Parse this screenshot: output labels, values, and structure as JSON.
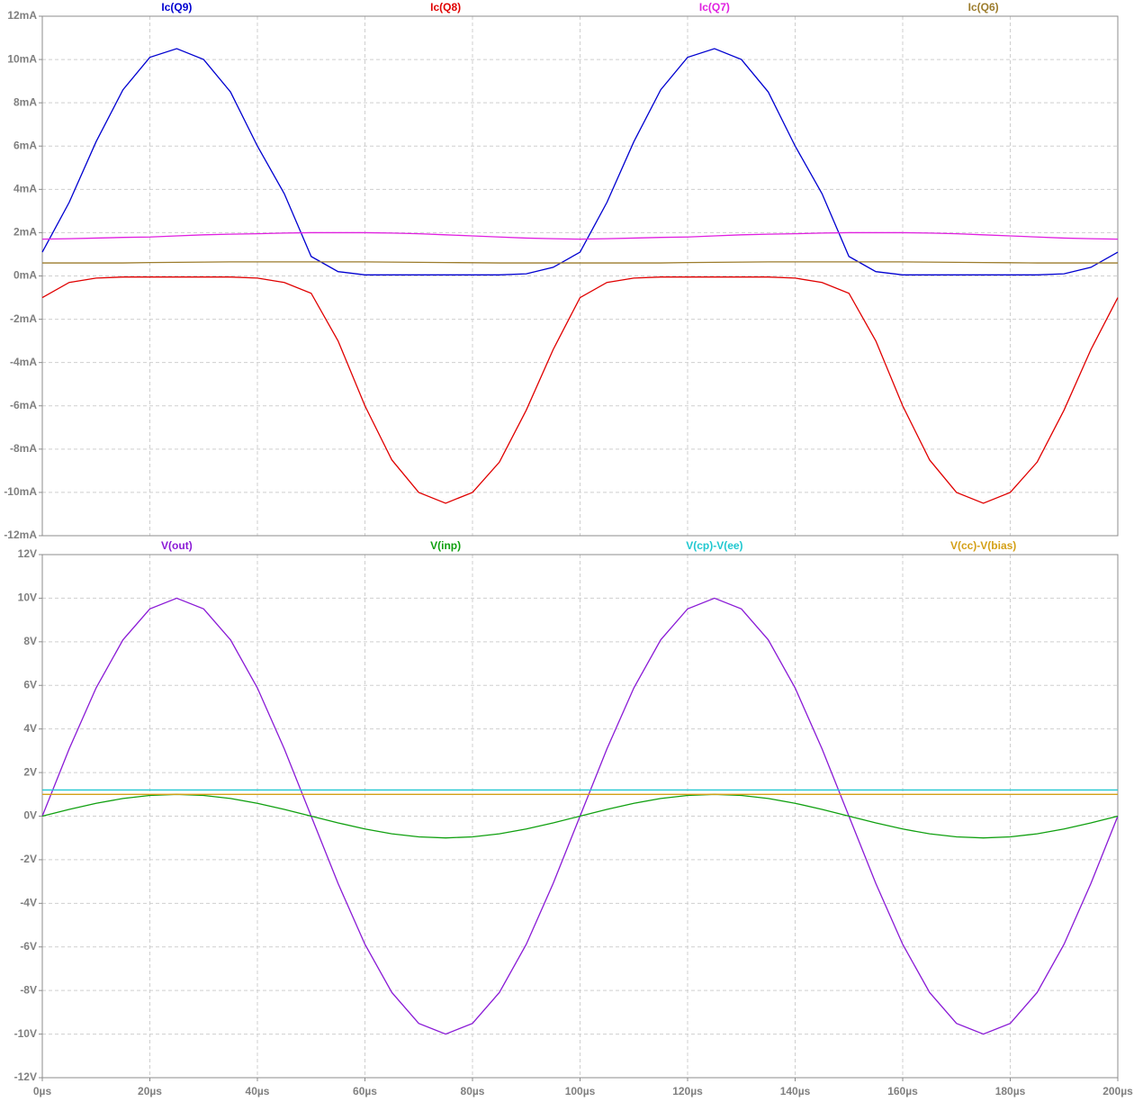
{
  "chart_data": [
    {
      "type": "line",
      "xlim": [
        0,
        200
      ],
      "ylim": [
        -12,
        12
      ],
      "yticks": [
        {
          "value": 12,
          "label": "12mA"
        },
        {
          "value": 10,
          "label": "10mA"
        },
        {
          "value": 8,
          "label": "8mA"
        },
        {
          "value": 6,
          "label": "6mA"
        },
        {
          "value": 4,
          "label": "4mA"
        },
        {
          "value": 2,
          "label": "2mA"
        },
        {
          "value": 0,
          "label": "0mA"
        },
        {
          "value": -2,
          "label": "-2mA"
        },
        {
          "value": -4,
          "label": "-4mA"
        },
        {
          "value": -6,
          "label": "-6mA"
        },
        {
          "value": -8,
          "label": "-8mA"
        },
        {
          "value": -10,
          "label": "-10mA"
        },
        {
          "value": -12,
          "label": "-12mA"
        }
      ],
      "grid": true,
      "x": [
        0,
        5,
        10,
        15,
        20,
        25,
        30,
        35,
        40,
        45,
        50,
        55,
        60,
        65,
        70,
        75,
        80,
        85,
        90,
        95,
        100,
        105,
        110,
        115,
        120,
        125,
        130,
        135,
        140,
        145,
        150,
        155,
        160,
        165,
        170,
        175,
        180,
        185,
        190,
        195,
        200
      ],
      "series": [
        {
          "name": "Ic(Q9)",
          "color": "#0000d0",
          "values": [
            1.1,
            3.4,
            6.2,
            8.6,
            10.1,
            10.5,
            10.0,
            8.5,
            6.0,
            3.8,
            0.9,
            0.2,
            0.05,
            0.05,
            0.05,
            0.05,
            0.05,
            0.05,
            0.1,
            0.4,
            1.1,
            3.4,
            6.2,
            8.6,
            10.1,
            10.5,
            10.0,
            8.5,
            6.0,
            3.8,
            0.9,
            0.2,
            0.05,
            0.05,
            0.05,
            0.05,
            0.05,
            0.05,
            0.1,
            0.4,
            1.1
          ]
        },
        {
          "name": "Ic(Q8)",
          "color": "#e00000",
          "values": [
            -1.0,
            -0.3,
            -0.1,
            -0.05,
            -0.05,
            -0.05,
            -0.05,
            -0.05,
            -0.1,
            -0.3,
            -0.8,
            -3.0,
            -6.0,
            -8.5,
            -10.0,
            -10.5,
            -10.0,
            -8.6,
            -6.2,
            -3.4,
            -1.0,
            -0.3,
            -0.1,
            -0.05,
            -0.05,
            -0.05,
            -0.05,
            -0.05,
            -0.1,
            -0.3,
            -0.8,
            -3.0,
            -6.0,
            -8.5,
            -10.0,
            -10.5,
            -10.0,
            -8.6,
            -6.2,
            -3.4,
            -1.0
          ]
        },
        {
          "name": "Ic(Q7)",
          "color": "#e020e0",
          "values": [
            1.7,
            1.72,
            1.75,
            1.78,
            1.8,
            1.85,
            1.9,
            1.93,
            1.95,
            1.98,
            2.0,
            2.0,
            2.0,
            1.98,
            1.95,
            1.9,
            1.85,
            1.8,
            1.75,
            1.72,
            1.7,
            1.72,
            1.75,
            1.78,
            1.8,
            1.85,
            1.9,
            1.93,
            1.95,
            1.98,
            2.0,
            2.0,
            2.0,
            1.98,
            1.95,
            1.9,
            1.85,
            1.8,
            1.75,
            1.72,
            1.7
          ]
        },
        {
          "name": "Ic(Q6)",
          "color": "#9c7c2c",
          "values": [
            0.6,
            0.6,
            0.6,
            0.6,
            0.62,
            0.63,
            0.64,
            0.65,
            0.65,
            0.65,
            0.65,
            0.65,
            0.65,
            0.64,
            0.63,
            0.62,
            0.61,
            0.6,
            0.6,
            0.6,
            0.6,
            0.6,
            0.6,
            0.6,
            0.62,
            0.63,
            0.64,
            0.65,
            0.65,
            0.65,
            0.65,
            0.65,
            0.65,
            0.64,
            0.63,
            0.62,
            0.61,
            0.6,
            0.6,
            0.6,
            0.6
          ]
        }
      ]
    },
    {
      "type": "line",
      "xlim": [
        0,
        200
      ],
      "ylim": [
        -12,
        12
      ],
      "xticks": [
        {
          "value": 0,
          "label": "0µs"
        },
        {
          "value": 20,
          "label": "20µs"
        },
        {
          "value": 40,
          "label": "40µs"
        },
        {
          "value": 60,
          "label": "60µs"
        },
        {
          "value": 80,
          "label": "80µs"
        },
        {
          "value": 100,
          "label": "100µs"
        },
        {
          "value": 120,
          "label": "120µs"
        },
        {
          "value": 140,
          "label": "140µs"
        },
        {
          "value": 160,
          "label": "160µs"
        },
        {
          "value": 180,
          "label": "180µs"
        },
        {
          "value": 200,
          "label": "200µs"
        }
      ],
      "yticks": [
        {
          "value": 12,
          "label": "12V"
        },
        {
          "value": 10,
          "label": "10V"
        },
        {
          "value": 8,
          "label": "8V"
        },
        {
          "value": 6,
          "label": "6V"
        },
        {
          "value": 4,
          "label": "4V"
        },
        {
          "value": 2,
          "label": "2V"
        },
        {
          "value": 0,
          "label": "0V"
        },
        {
          "value": -2,
          "label": "-2V"
        },
        {
          "value": -4,
          "label": "-4V"
        },
        {
          "value": -6,
          "label": "-6V"
        },
        {
          "value": -8,
          "label": "-8V"
        },
        {
          "value": -10,
          "label": "-10V"
        },
        {
          "value": -12,
          "label": "-12V"
        }
      ],
      "grid": true,
      "x": [
        0,
        5,
        10,
        15,
        20,
        25,
        30,
        35,
        40,
        45,
        50,
        55,
        60,
        65,
        70,
        75,
        80,
        85,
        90,
        95,
        100,
        105,
        110,
        115,
        120,
        125,
        130,
        135,
        140,
        145,
        150,
        155,
        160,
        165,
        170,
        175,
        180,
        185,
        190,
        195,
        200
      ],
      "series": [
        {
          "name": "V(out)",
          "color": "#8a1ad6",
          "values": [
            0,
            3.09,
            5.88,
            8.09,
            9.51,
            10,
            9.51,
            8.09,
            5.88,
            3.09,
            0,
            -3.09,
            -5.88,
            -8.09,
            -9.51,
            -10,
            -9.51,
            -8.09,
            -5.88,
            -3.09,
            0,
            3.09,
            5.88,
            8.09,
            9.51,
            10,
            9.51,
            8.09,
            5.88,
            3.09,
            0,
            -3.09,
            -5.88,
            -8.09,
            -9.51,
            -10,
            -9.51,
            -8.09,
            -5.88,
            -3.09,
            0
          ]
        },
        {
          "name": "V(inp)",
          "color": "#10a010",
          "values": [
            0,
            0.31,
            0.59,
            0.81,
            0.95,
            1,
            0.95,
            0.81,
            0.59,
            0.31,
            0,
            -0.31,
            -0.59,
            -0.81,
            -0.95,
            -1,
            -0.95,
            -0.81,
            -0.59,
            -0.31,
            0,
            0.31,
            0.59,
            0.81,
            0.95,
            1,
            0.95,
            0.81,
            0.59,
            0.31,
            0,
            -0.31,
            -0.59,
            -0.81,
            -0.95,
            -1,
            -0.95,
            -0.81,
            -0.59,
            -0.31,
            0
          ]
        },
        {
          "name": "V(cp)-V(ee)",
          "color": "#20c8d0",
          "values": [
            1.2,
            1.2,
            1.2,
            1.2,
            1.2,
            1.2,
            1.2,
            1.2,
            1.2,
            1.2,
            1.2,
            1.2,
            1.2,
            1.2,
            1.2,
            1.2,
            1.2,
            1.2,
            1.2,
            1.2,
            1.2,
            1.2,
            1.2,
            1.2,
            1.2,
            1.2,
            1.2,
            1.2,
            1.2,
            1.2,
            1.2,
            1.2,
            1.2,
            1.2,
            1.2,
            1.2,
            1.2,
            1.2,
            1.2,
            1.2,
            1.2
          ]
        },
        {
          "name": "V(cc)-V(bias)",
          "color": "#d4a017",
          "values": [
            1,
            1,
            1,
            1,
            1,
            1,
            1,
            1,
            1,
            1,
            1,
            1,
            1,
            1,
            1,
            1,
            1,
            1,
            1,
            1,
            1,
            1,
            1,
            1,
            1,
            1,
            1,
            1,
            1,
            1,
            1,
            1,
            1,
            1,
            1,
            1,
            1,
            1,
            1,
            1,
            1
          ]
        }
      ]
    }
  ]
}
